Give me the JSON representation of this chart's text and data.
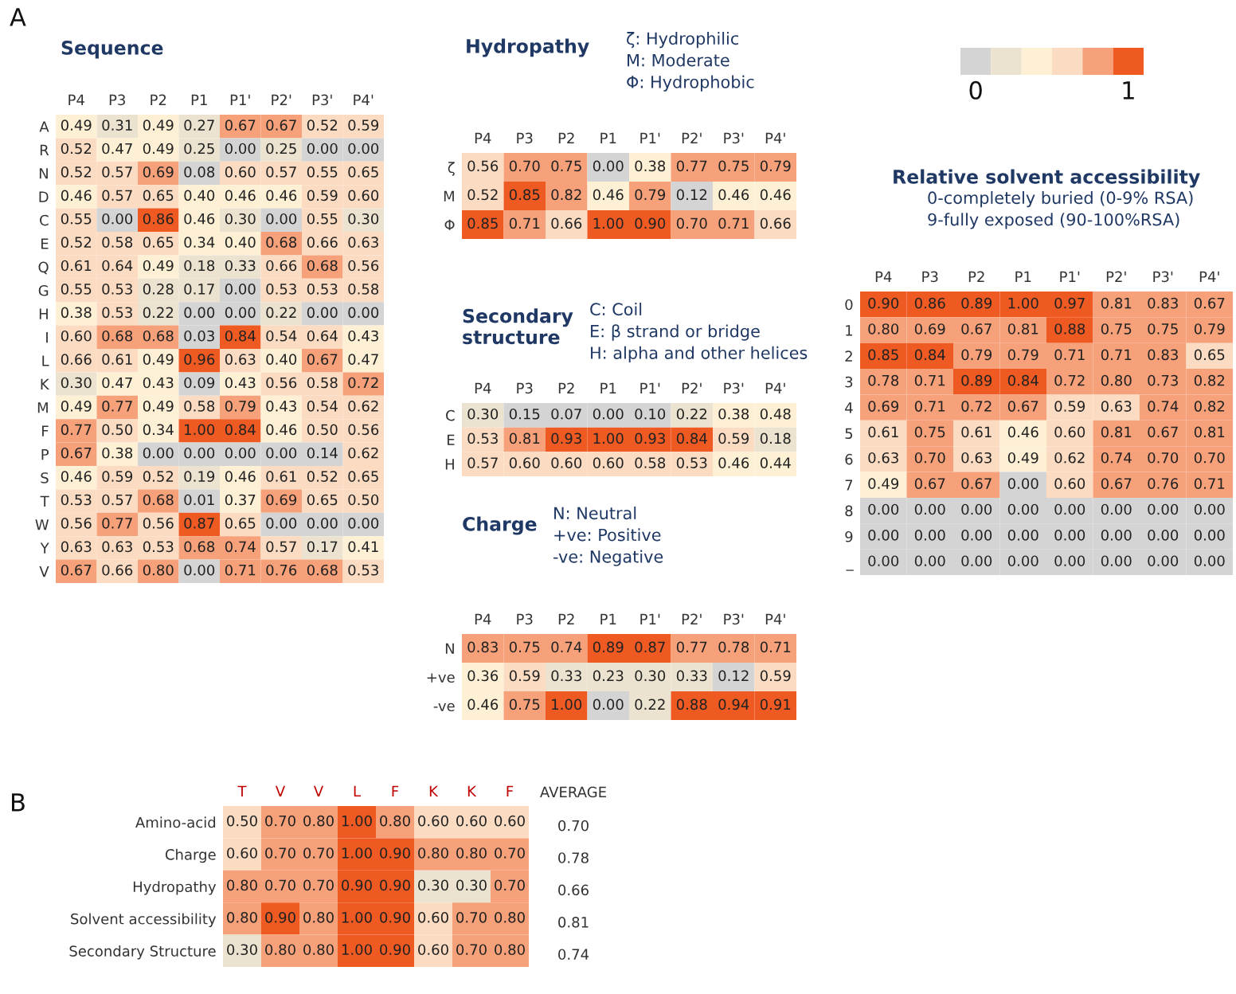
{
  "chart_data": [
    {
      "type": "heatmap",
      "title": "Sequence",
      "annotations": [
        "A"
      ],
      "data_labels": true,
      "categories": [
        "P4",
        "P3",
        "P2",
        "P1",
        "P1'",
        "P2'",
        "P3'",
        "P4'"
      ],
      "y_categories": [
        "A",
        "R",
        "N",
        "D",
        "C",
        "E",
        "Q",
        "G",
        "H",
        "I",
        "L",
        "K",
        "M",
        "F",
        "P",
        "S",
        "T",
        "W",
        "Y",
        "V"
      ],
      "cells": [
        [
          0.49,
          0.31,
          0.49,
          0.27,
          0.67,
          0.67,
          0.52,
          0.59
        ],
        [
          0.52,
          0.47,
          0.49,
          0.25,
          0.0,
          0.25,
          0.0,
          0.0
        ],
        [
          0.52,
          0.57,
          0.69,
          0.08,
          0.6,
          0.57,
          0.55,
          0.65
        ],
        [
          0.46,
          0.57,
          0.65,
          0.4,
          0.46,
          0.46,
          0.59,
          0.6
        ],
        [
          0.55,
          0.0,
          0.86,
          0.46,
          0.3,
          0.0,
          0.55,
          0.3
        ],
        [
          0.52,
          0.58,
          0.65,
          0.34,
          0.4,
          0.68,
          0.66,
          0.63
        ],
        [
          0.61,
          0.64,
          0.49,
          0.18,
          0.33,
          0.66,
          0.68,
          0.56
        ],
        [
          0.55,
          0.53,
          0.28,
          0.17,
          0.0,
          0.53,
          0.53,
          0.58
        ],
        [
          0.38,
          0.53,
          0.22,
          0.0,
          0.0,
          0.22,
          0.0,
          0.0
        ],
        [
          0.6,
          0.68,
          0.68,
          0.03,
          0.84,
          0.54,
          0.64,
          0.43
        ],
        [
          0.66,
          0.61,
          0.49,
          0.96,
          0.63,
          0.4,
          0.67,
          0.47
        ],
        [
          0.3,
          0.47,
          0.43,
          0.09,
          0.43,
          0.56,
          0.58,
          0.72
        ],
        [
          0.49,
          0.77,
          0.49,
          0.58,
          0.79,
          0.43,
          0.54,
          0.62
        ],
        [
          0.77,
          0.5,
          0.34,
          1.0,
          0.84,
          0.46,
          0.5,
          0.56
        ],
        [
          0.67,
          0.38,
          0.0,
          0.0,
          0.0,
          0.0,
          0.14,
          0.62
        ],
        [
          0.46,
          0.59,
          0.52,
          0.19,
          0.46,
          0.61,
          0.52,
          0.65
        ],
        [
          0.53,
          0.57,
          0.68,
          0.01,
          0.37,
          0.69,
          0.65,
          0.5
        ],
        [
          0.56,
          0.77,
          0.56,
          0.87,
          0.65,
          0.0,
          0.0,
          0.0
        ],
        [
          0.63,
          0.63,
          0.53,
          0.68,
          0.74,
          0.57,
          0.17,
          0.41
        ],
        [
          0.67,
          0.66,
          0.8,
          0.0,
          0.71,
          0.76,
          0.68,
          0.53
        ]
      ],
      "cell_labels": [
        [
          "0.49",
          "0.31",
          "0.49",
          "0.27",
          "0.67",
          "0.67",
          "0.52",
          "0.59"
        ],
        [
          "0.52",
          "0.47",
          "0.49",
          "0.25",
          "0.00",
          "0.25",
          "0.00",
          "0.00"
        ],
        [
          "0.52",
          "0.57",
          "0.69",
          "0.08",
          "0.60",
          "0.57",
          "0.55",
          "0.65"
        ],
        [
          "0.46",
          "0.57",
          "0.65",
          "0.40",
          "0.46",
          "0.46",
          "0.59",
          "0.60"
        ],
        [
          "0.55",
          "0.00",
          "0.86",
          "0.46",
          "0.30",
          "0.00",
          "0.55",
          "0.30"
        ],
        [
          "0.52",
          "0.58",
          "0.65",
          "0.34",
          "0.40",
          "0.68",
          "0.66",
          "0.63"
        ],
        [
          "0.61",
          "0.64",
          "0.49",
          "0.18",
          "0.33",
          "0.66",
          "0.68",
          "0.56"
        ],
        [
          "0.55",
          "0.53",
          "0.28",
          "0.17",
          "0.00",
          "0.53",
          "0.53",
          "0.58"
        ],
        [
          "0.38",
          "0.53",
          "0.22",
          "0.00",
          "0.00",
          "0.22",
          "0.00",
          "0.00"
        ],
        [
          "0.60",
          "0.68",
          "0.68",
          "0.03",
          "0.84",
          "0.54",
          "0.64",
          "0.43"
        ],
        [
          "0.66",
          "0.61",
          "0.49",
          "0.96",
          "0.63",
          "0.40",
          "0.67",
          "0.47"
        ],
        [
          "0.30",
          "0.47",
          "0.43",
          "0.09",
          "0.43",
          "0.56",
          "0.58",
          "0.72"
        ],
        [
          "0.49",
          "0.77",
          "0.49",
          "0.58",
          "0.79",
          "0.43",
          "0.54",
          "0.62"
        ],
        [
          "0.77",
          "0.50",
          "0.34",
          "1.00",
          "0.84",
          "0.46",
          "0.50",
          "0.56"
        ],
        [
          "0.67",
          "0.38",
          "0.00",
          "0.00",
          "0.00",
          "0.00",
          "0.14",
          "0.62"
        ],
        [
          "0.46",
          "0.59",
          "0.52",
          "0.19",
          "0.46",
          "0.61",
          "0.52",
          "0.65"
        ],
        [
          "0.53",
          "0.57",
          "0.68",
          "0.01",
          "0.37",
          "0.69",
          "0.65",
          "0.50"
        ],
        [
          "0.56",
          "0.77",
          "0.56",
          "0.87",
          "0.65",
          "0.00",
          "0.00",
          "0.00"
        ],
        [
          "0.63",
          "0.63",
          "0.53",
          "0.68",
          "0.74",
          "0.57",
          "0.17",
          "0.41"
        ],
        [
          "0.67",
          "0.66",
          "0.80",
          "0.00",
          "0.71",
          "0.76",
          "0.68",
          "0.53"
        ]
      ]
    },
    {
      "type": "heatmap",
      "data_labels": true,
      "title": "Hydropathy",
      "subtitle": "ζ: Hydrophilic\nM: Moderate\nΦ: Hydrophobic",
      "categories": [
        "P4",
        "P3",
        "P2",
        "P1",
        "P1'",
        "P2'",
        "P3'",
        "P4'"
      ],
      "y_categories": [
        "ζ",
        "M",
        "Φ"
      ],
      "cells": [
        [
          0.56,
          0.7,
          0.75,
          0.0,
          0.38,
          0.77,
          0.75,
          0.79
        ],
        [
          0.52,
          0.85,
          0.82,
          0.46,
          0.79,
          0.12,
          0.46,
          0.46
        ],
        [
          0.85,
          0.71,
          0.66,
          1.0,
          0.9,
          0.7,
          0.71,
          0.66
        ]
      ],
      "cell_labels": [
        [
          "0.56",
          "0.70",
          "0.75",
          "0.00",
          "0.38",
          "0.77",
          "0.75",
          "0.79"
        ],
        [
          "0.52",
          "0.85",
          "0.82",
          "0.46",
          "0.79",
          "0.12",
          "0.46",
          "0.46"
        ],
        [
          "0.85",
          "0.71",
          "0.66",
          "1.00",
          "0.90",
          "0.70",
          "0.71",
          "0.66"
        ]
      ]
    },
    {
      "type": "heatmap",
      "data_labels": true,
      "title": "Secondary\nstructure",
      "subtitle": "C: Coil\nE: β strand or bridge\nH: alpha and other helices",
      "categories": [
        "P4",
        "P3",
        "P2",
        "P1",
        "P1'",
        "P2'",
        "P3'",
        "P4'"
      ],
      "y_categories": [
        "C",
        "E",
        "H"
      ],
      "cells": [
        [
          0.3,
          0.15,
          0.07,
          0.0,
          0.1,
          0.22,
          0.38,
          0.48
        ],
        [
          0.53,
          0.81,
          0.93,
          1.0,
          0.93,
          0.84,
          0.59,
          0.18
        ],
        [
          0.57,
          0.6,
          0.6,
          0.6,
          0.58,
          0.53,
          0.46,
          0.44
        ]
      ],
      "cell_labels": [
        [
          "0.30",
          "0.15",
          "0.07",
          "0.00",
          "0.10",
          "0.22",
          "0.38",
          "0.48"
        ],
        [
          "0.53",
          "0.81",
          "0.93",
          "1.00",
          "0.93",
          "0.84",
          "0.59",
          "0.18"
        ],
        [
          "0.57",
          "0.60",
          "0.60",
          "0.60",
          "0.58",
          "0.53",
          "0.46",
          "0.44"
        ]
      ]
    },
    {
      "type": "heatmap",
      "data_labels": true,
      "title": "Charge",
      "subtitle": "N: Neutral\n+ve: Positive\n-ve: Negative",
      "categories": [
        "P4",
        "P3",
        "P2",
        "P1",
        "P1'",
        "P2'",
        "P3'",
        "P4'"
      ],
      "y_categories": [
        "N",
        "+ve",
        "-ve"
      ],
      "cells": [
        [
          0.83,
          0.75,
          0.74,
          0.89,
          0.87,
          0.77,
          0.78,
          0.71
        ],
        [
          0.36,
          0.59,
          0.33,
          0.23,
          0.3,
          0.33,
          0.12,
          0.59
        ],
        [
          0.46,
          0.75,
          1.0,
          0.0,
          0.22,
          0.88,
          0.94,
          0.91
        ]
      ],
      "cell_labels": [
        [
          "0.83",
          "0.75",
          "0.74",
          "0.89",
          "0.87",
          "0.77",
          "0.78",
          "0.71"
        ],
        [
          "0.36",
          "0.59",
          "0.33",
          "0.23",
          "0.30",
          "0.33",
          "0.12",
          "0.59"
        ],
        [
          "0.46",
          "0.75",
          "1.00",
          "0.00",
          "0.22",
          "0.88",
          "0.94",
          "0.91"
        ]
      ]
    },
    {
      "type": "heatmap",
      "data_labels": true,
      "title": "Relative solvent accessibility",
      "subtitle": "0-completely buried (0-9% RSA)\n9-fully exposed (90-100%RSA)",
      "categories": [
        "P4",
        "P3",
        "P2",
        "P1",
        "P1'",
        "P2'",
        "P3'",
        "P4'"
      ],
      "y_categories": [
        "0",
        "1",
        "2",
        "3",
        "4",
        "5",
        "6",
        "7",
        "8",
        "9",
        "_"
      ],
      "cells": [
        [
          0.9,
          0.86,
          0.89,
          1.0,
          0.97,
          0.81,
          0.83,
          0.67
        ],
        [
          0.8,
          0.69,
          0.67,
          0.81,
          0.88,
          0.75,
          0.75,
          0.79
        ],
        [
          0.85,
          0.84,
          0.79,
          0.79,
          0.71,
          0.71,
          0.83,
          0.65
        ],
        [
          0.78,
          0.71,
          0.89,
          0.84,
          0.72,
          0.8,
          0.73,
          0.82
        ],
        [
          0.69,
          0.71,
          0.72,
          0.67,
          0.59,
          0.63,
          0.74,
          0.82
        ],
        [
          0.61,
          0.75,
          0.61,
          0.46,
          0.6,
          0.81,
          0.67,
          0.81
        ],
        [
          0.63,
          0.7,
          0.63,
          0.49,
          0.62,
          0.74,
          0.7,
          0.7
        ],
        [
          0.49,
          0.67,
          0.67,
          0.0,
          0.6,
          0.67,
          0.76,
          0.71
        ],
        [
          0.0,
          0.0,
          0.0,
          0.0,
          0.0,
          0.0,
          0.0,
          0.0
        ],
        [
          0.0,
          0.0,
          0.0,
          0.0,
          0.0,
          0.0,
          0.0,
          0.0
        ],
        [
          0.0,
          0.0,
          0.0,
          0.0,
          0.0,
          0.0,
          0.0,
          0.0
        ]
      ],
      "cell_labels": [
        [
          "0.90",
          "0.86",
          "0.89",
          "1.00",
          "0.97",
          "0.81",
          "0.83",
          "0.67"
        ],
        [
          "0.80",
          "0.69",
          "0.67",
          "0.81",
          "0.88",
          "0.75",
          "0.75",
          "0.79"
        ],
        [
          "0.85",
          "0.84",
          "0.79",
          "0.79",
          "0.71",
          "0.71",
          "0.83",
          "0.65"
        ],
        [
          "0.78",
          "0.71",
          "0.89",
          "0.84",
          "0.72",
          "0.80",
          "0.73",
          "0.82"
        ],
        [
          "0.69",
          "0.71",
          "0.72",
          "0.67",
          "0.59",
          "0.63",
          "0.74",
          "0.82"
        ],
        [
          "0.61",
          "0.75",
          "0.61",
          "0.46",
          "0.60",
          "0.81",
          "0.67",
          "0.81"
        ],
        [
          "0.63",
          "0.70",
          "0.63",
          "0.49",
          "0.62",
          "0.74",
          "0.70",
          "0.70"
        ],
        [
          "0.49",
          "0.67",
          "0.67",
          "0.00",
          "0.60",
          "0.67",
          "0.76",
          "0.71"
        ],
        [
          "0.00",
          "0.00",
          "0.00",
          "0.00",
          "0.00",
          "0.00",
          "0.00",
          "0.00"
        ],
        [
          "0.00",
          "0.00",
          "0.00",
          "0.00",
          "0.00",
          "0.00",
          "0.00",
          "0.00"
        ],
        [
          "0.00",
          "0.00",
          "0.00",
          "0.00",
          "0.00",
          "0.00",
          "0.00",
          "0.00"
        ]
      ]
    },
    {
      "type": "heatmap",
      "data_labels": true,
      "annotations": [
        "B"
      ],
      "y2label": "AVERAGE",
      "categories": [
        "T",
        "V",
        "V",
        "L",
        "F",
        "K",
        "K",
        "F"
      ],
      "y_categories": [
        "Amino-acid",
        "Charge",
        "Hydropathy",
        "Solvent accessibility",
        "Secondary Structure"
      ],
      "y2_categories": [
        "0.70",
        "0.78",
        "0.66",
        "0.81",
        "0.74"
      ],
      "cells": [
        [
          0.5,
          0.7,
          0.8,
          1.0,
          0.8,
          0.6,
          0.6,
          0.6
        ],
        [
          0.6,
          0.7,
          0.7,
          1.0,
          0.9,
          0.8,
          0.8,
          0.7
        ],
        [
          0.8,
          0.7,
          0.7,
          0.9,
          0.9,
          0.3,
          0.3,
          0.7
        ],
        [
          0.8,
          0.9,
          0.8,
          1.0,
          0.9,
          0.6,
          0.7,
          0.8
        ],
        [
          0.3,
          0.8,
          0.8,
          1.0,
          0.9,
          0.6,
          0.7,
          0.8
        ]
      ],
      "cell_labels": [
        [
          "0.50",
          "0.70",
          "0.80",
          "1.00",
          "0.80",
          "0.60",
          "0.60",
          "0.60"
        ],
        [
          "0.60",
          "0.70",
          "0.70",
          "1.00",
          "0.90",
          "0.80",
          "0.80",
          "0.70"
        ],
        [
          "0.80",
          "0.70",
          "0.70",
          "0.90",
          "0.90",
          "0.30",
          "0.30",
          "0.70"
        ],
        [
          "0.80",
          "0.90",
          "0.80",
          "1.00",
          "0.90",
          "0.60",
          "0.70",
          "0.80"
        ],
        [
          "0.30",
          "0.80",
          "0.80",
          "1.00",
          "0.90",
          "0.60",
          "0.70",
          "0.80"
        ]
      ]
    },
    {
      "type": "other",
      "annotations": [
        "0",
        "1"
      ]
    }
  ]
}
